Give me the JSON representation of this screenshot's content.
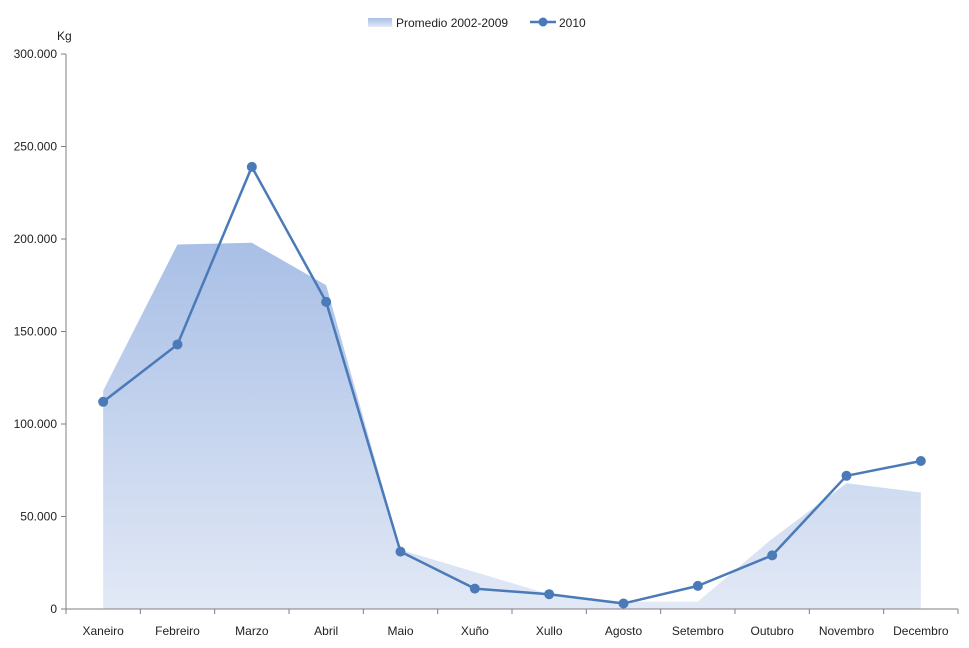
{
  "chart_data": {
    "type": "area",
    "title": "",
    "xlabel": "",
    "ylabel": "Kg",
    "ylim": [
      0,
      300000
    ],
    "grid": false,
    "legend_position": "top",
    "categories": [
      "Xaneiro",
      "Febreiro",
      "Marzo",
      "Abril",
      "Maio",
      "Xuño",
      "Xullo",
      "Agosto",
      "Setembro",
      "Outubro",
      "Novembro",
      "Decembro"
    ],
    "y_tick_values": [
      0,
      50000,
      100000,
      150000,
      200000,
      250000,
      300000
    ],
    "y_tick_labels": [
      "0",
      "50.000",
      "100.000",
      "150.000",
      "200.000",
      "250.000",
      "300.000"
    ],
    "series": [
      {
        "name": "Promedio 2002-2009",
        "type": "area",
        "color": "#b4c7e7",
        "values": [
          118000,
          197000,
          198000,
          175000,
          32000,
          20000,
          8000,
          4000,
          4000,
          38000,
          68000,
          63000
        ]
      },
      {
        "name": "2010",
        "type": "line",
        "color": "#4a7ab8",
        "values": [
          112000,
          143000,
          239000,
          166000,
          31000,
          11000,
          8000,
          3000,
          12500,
          29000,
          72000,
          80000
        ]
      }
    ]
  }
}
